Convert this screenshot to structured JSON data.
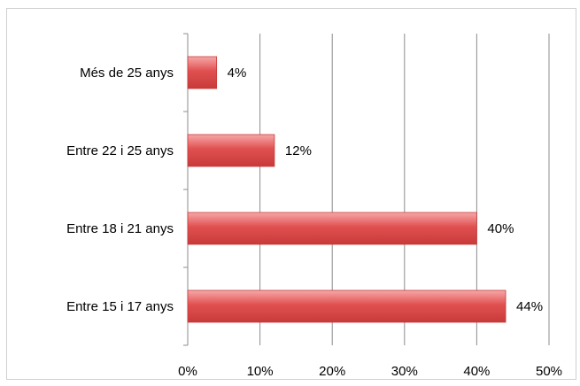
{
  "chart_data": {
    "type": "bar",
    "orientation": "horizontal",
    "categories": [
      "Més de 25 anys",
      "Entre 22 i 25 anys",
      "Entre 18 i 21 anys",
      "Entre 15 i 17 anys"
    ],
    "values": [
      4,
      12,
      40,
      44
    ],
    "data_labels": [
      "4%",
      "12%",
      "40%",
      "44%"
    ],
    "x_ticks": [
      "0%",
      "10%",
      "20%",
      "30%",
      "40%",
      "50%"
    ],
    "xlim": [
      0,
      50
    ],
    "grid": "vertical",
    "legend": "none",
    "bar_color": "#e05050",
    "bar_color_light": "#f7a8a8",
    "bar_color_dark": "#c83a3a"
  }
}
